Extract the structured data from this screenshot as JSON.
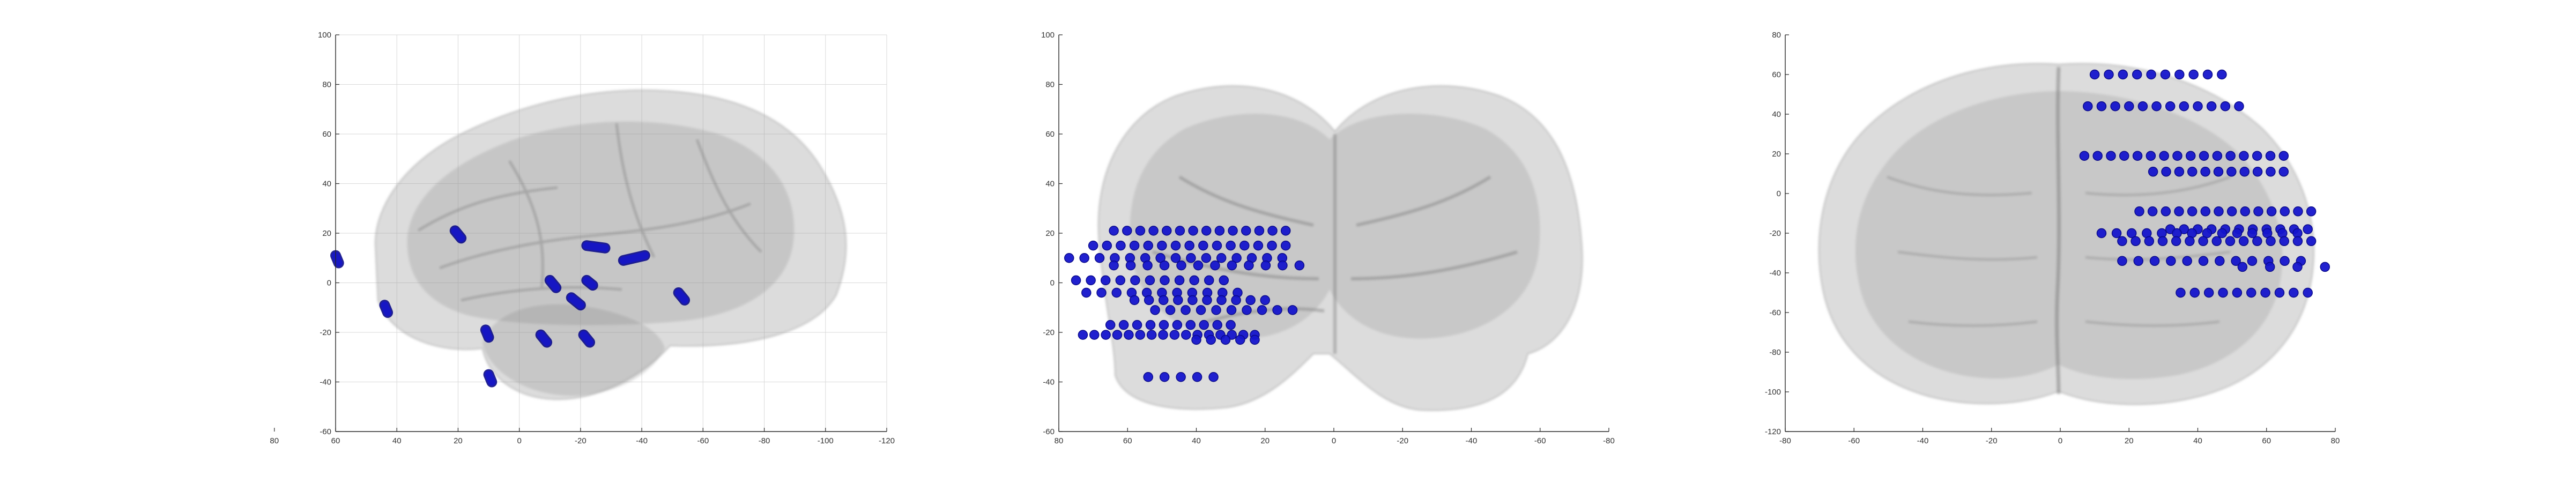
{
  "figure": {
    "colors": {
      "electrode": "#1515cc",
      "electrode_edge": "#0b0b8a",
      "brain": "#9a9a9a",
      "axis": "#262626",
      "grid": "#d9d9d9"
    }
  },
  "chart_data": [
    {
      "type": "scatter",
      "view": "sagittal",
      "grid": true,
      "xlim": [
        60,
        -120
      ],
      "ylim": [
        -60,
        100
      ],
      "xticks": [
        80,
        60,
        40,
        20,
        0,
        -20,
        -40,
        -60,
        -80,
        -100,
        -120
      ],
      "xtick_labels": [
        "80",
        "60",
        "40",
        "20",
        "0",
        "-20",
        "-40",
        "-60",
        "-80",
        "-100",
        "-120"
      ],
      "yticks": [
        -60,
        -40,
        -20,
        0,
        20,
        40,
        60,
        80,
        100
      ],
      "ytick_labels": [
        "-60",
        "-40",
        "-20",
        "0",
        "20",
        "40",
        "60",
        "80",
        "100"
      ],
      "shafts": [
        {
          "from": [
            60,
            11
          ],
          "to": [
            59,
            8
          ]
        },
        {
          "from": [
            44,
            -9
          ],
          "to": [
            43,
            -12
          ]
        },
        {
          "from": [
            21,
            21
          ],
          "to": [
            19,
            18
          ]
        },
        {
          "from": [
            11,
            -19
          ],
          "to": [
            10,
            -22
          ]
        },
        {
          "from": [
            10,
            -37
          ],
          "to": [
            9,
            -40
          ]
        },
        {
          "from": [
            -7,
            -21
          ],
          "to": [
            -9,
            -24
          ]
        },
        {
          "from": [
            -10,
            1
          ],
          "to": [
            -12,
            -2
          ]
        },
        {
          "from": [
            -17,
            -6
          ],
          "to": [
            -20,
            -9
          ]
        },
        {
          "from": [
            -21,
            -21
          ],
          "to": [
            -23,
            -24
          ]
        },
        {
          "from": [
            -22,
            1
          ],
          "to": [
            -24,
            -1
          ]
        },
        {
          "from": [
            -22,
            15
          ],
          "to": [
            -28,
            14
          ]
        },
        {
          "from": [
            -34,
            9
          ],
          "to": [
            -41,
            11
          ]
        },
        {
          "from": [
            -52,
            -4
          ],
          "to": [
            -54,
            -7
          ]
        }
      ]
    },
    {
      "type": "scatter",
      "view": "coronal",
      "grid": false,
      "xlim": [
        80,
        -80
      ],
      "ylim": [
        -60,
        100
      ],
      "xticks": [
        80,
        60,
        40,
        20,
        0,
        -20,
        -40,
        -60,
        -80
      ],
      "xtick_labels": [
        "80",
        "60",
        "40",
        "20",
        "0",
        "-20",
        "-40",
        "-60",
        "-80"
      ],
      "yticks": [
        -60,
        -40,
        -20,
        0,
        20,
        40,
        60,
        80,
        100
      ],
      "ytick_labels": [
        "-60",
        "-40",
        "-20",
        "0",
        "20",
        "40",
        "60",
        "80",
        "100"
      ],
      "rows": [
        {
          "y": 21,
          "x_start": 64,
          "x_end": 14,
          "n": 14
        },
        {
          "y": 15,
          "x_start": 70,
          "x_end": 14,
          "n": 15
        },
        {
          "y": 10,
          "x_start": 77,
          "x_end": 15,
          "n": 15
        },
        {
          "y": 7,
          "x_start": 64,
          "x_end": 10,
          "n": 12
        },
        {
          "y": 1,
          "x_start": 75,
          "x_end": 32,
          "n": 11
        },
        {
          "y": -4,
          "x_start": 72,
          "x_end": 28,
          "n": 11
        },
        {
          "y": -7,
          "x_start": 58,
          "x_end": 20,
          "n": 10
        },
        {
          "y": -11,
          "x_start": 52,
          "x_end": 12,
          "n": 10
        },
        {
          "y": -17,
          "x_start": 65,
          "x_end": 30,
          "n": 10
        },
        {
          "y": -21,
          "x_start": 73,
          "x_end": 23,
          "n": 16
        },
        {
          "y": -23,
          "x_start": 40,
          "x_end": 23,
          "n": 5
        },
        {
          "y": -38,
          "x_start": 54,
          "x_end": 35,
          "n": 5
        }
      ]
    },
    {
      "type": "scatter",
      "view": "axial",
      "grid": false,
      "xlim": [
        -80,
        80
      ],
      "ylim": [
        -120,
        80
      ],
      "xticks": [
        -80,
        -60,
        -40,
        -20,
        0,
        20,
        40,
        60,
        80
      ],
      "xtick_labels": [
        "-80",
        "-60",
        "-40",
        "-20",
        "0",
        "20",
        "40",
        "60",
        "80"
      ],
      "yticks": [
        -120,
        -100,
        -80,
        -60,
        -40,
        -20,
        0,
        20,
        40,
        60,
        80
      ],
      "ytick_labels": [
        "-120",
        "-100",
        "-80",
        "-60",
        "-40",
        "-20",
        "0",
        "20",
        "40",
        "60",
        "80"
      ],
      "rows": [
        {
          "y": 60,
          "x_start": 10,
          "x_end": 47,
          "n": 10
        },
        {
          "y": 44,
          "x_start": 8,
          "x_end": 52,
          "n": 12
        },
        {
          "y": 19,
          "x_start": 7,
          "x_end": 65,
          "n": 16
        },
        {
          "y": 11,
          "x_start": 27,
          "x_end": 65,
          "n": 11
        },
        {
          "y": -9,
          "x_start": 23,
          "x_end": 73,
          "n": 14
        },
        {
          "y": -18,
          "x_start": 32,
          "x_end": 72,
          "n": 11
        },
        {
          "y": -20,
          "x_start": 12,
          "x_end": 69,
          "n": 14
        },
        {
          "y": -24,
          "x_start": 18,
          "x_end": 73,
          "n": 15
        },
        {
          "y": -34,
          "x_start": 18,
          "x_end": 70,
          "n": 12
        },
        {
          "y": -37,
          "x_start": 53,
          "x_end": 77,
          "n": 4
        },
        {
          "y": -50,
          "x_start": 35,
          "x_end": 72,
          "n": 10
        }
      ]
    }
  ]
}
